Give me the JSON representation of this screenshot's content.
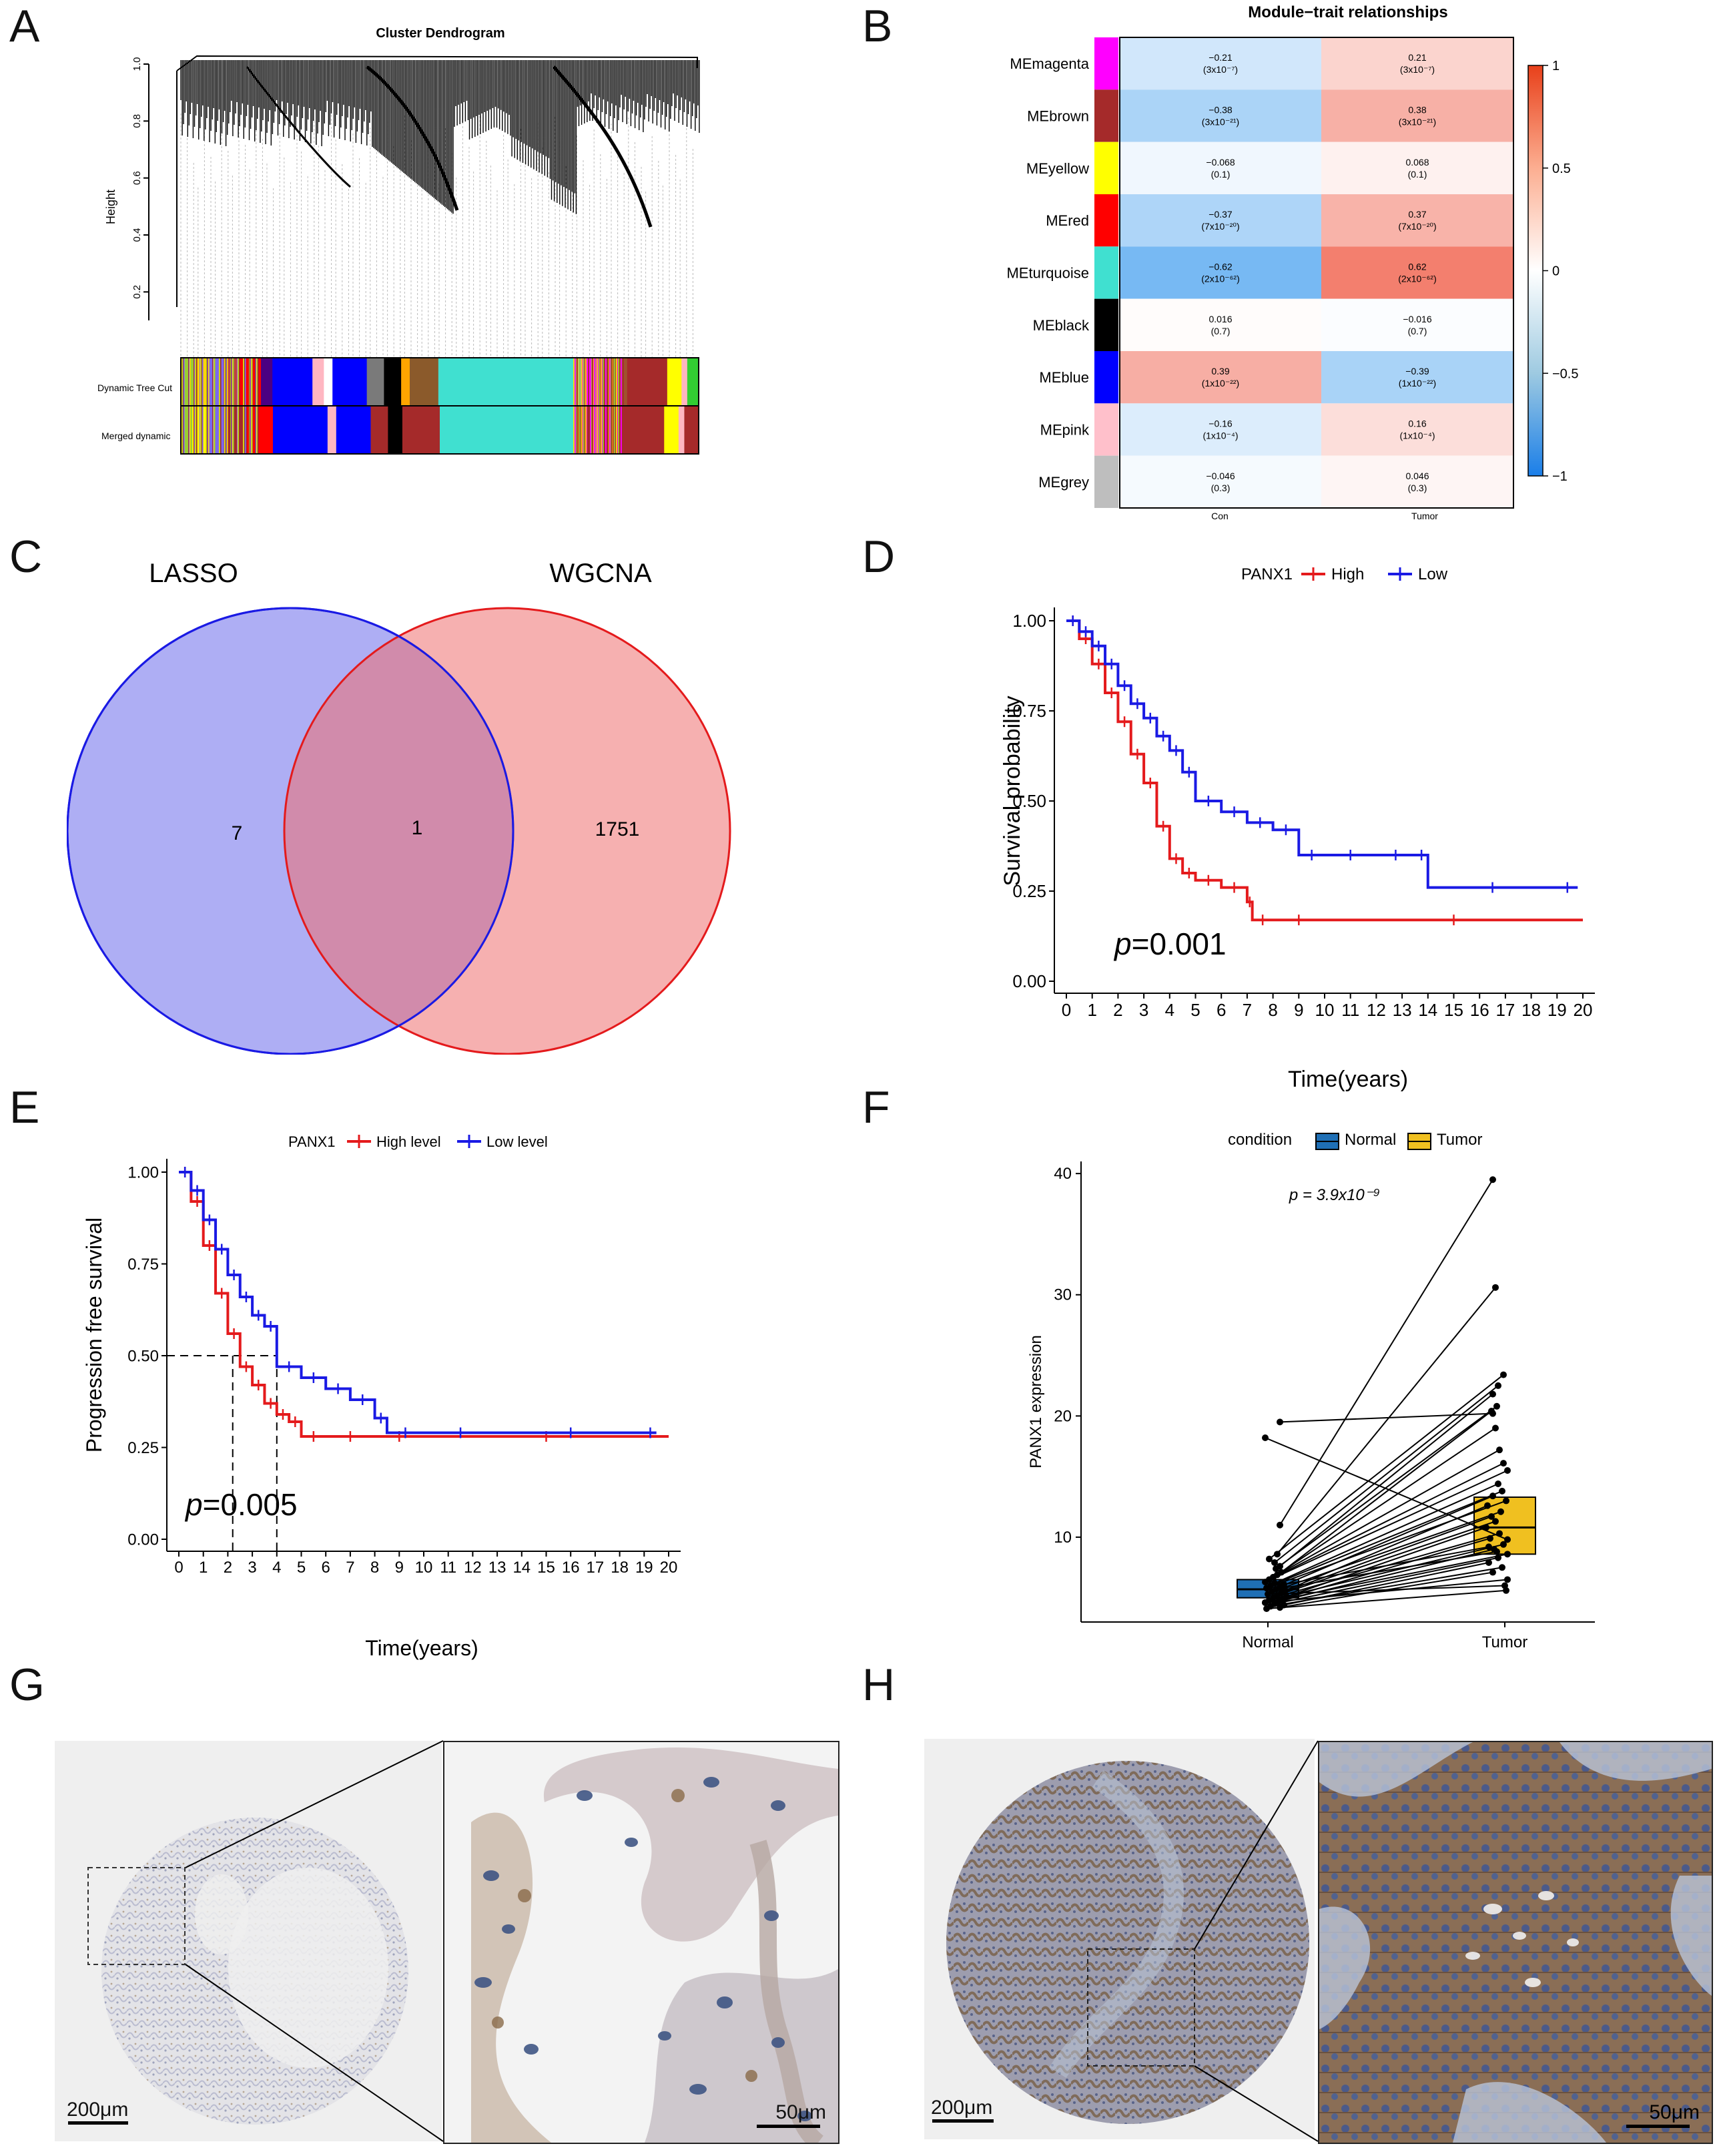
{
  "panels": {
    "a": {
      "letter": "A",
      "title": "Cluster Dendrogram",
      "ylabel": "Height",
      "yticks": [
        "1.0",
        "0.8",
        "0.6",
        "0.4",
        "0.2"
      ],
      "row_labels": [
        "Dynamic Tree Cut",
        "Merged dynamic"
      ],
      "tracks": [
        {
          "width": 0.025,
          "color": "#9acd32"
        },
        {
          "width": 0.02,
          "color": "#ffd700"
        },
        {
          "width": 0.03,
          "color": "#7b68ee"
        },
        {
          "width": 0.025,
          "color": "#c04040"
        },
        {
          "width": 0.04,
          "color": "#ff0000"
        },
        {
          "width": 0.02,
          "color": "#4b0082"
        },
        {
          "width": 0.07,
          "color": "#0000ff"
        },
        {
          "width": 0.02,
          "color": "#ffb6c1"
        },
        {
          "width": 0.015,
          "color": "#ffffff"
        },
        {
          "width": 0.06,
          "color": "#0000ff"
        },
        {
          "width": 0.03,
          "color": "#7a7a7a"
        },
        {
          "width": 0.03,
          "color": "#000000"
        },
        {
          "width": 0.015,
          "color": "#ffa500"
        },
        {
          "width": 0.05,
          "color": "#8b5a2b"
        },
        {
          "width": 0.24,
          "color": "#40e0d0"
        },
        {
          "width": 0.015,
          "color": "#aaaaaa"
        },
        {
          "width": 0.03,
          "color": "#ff00ff"
        },
        {
          "width": 0.045,
          "color": "#a0522d"
        },
        {
          "width": 0.02,
          "color": "#a52a2a"
        },
        {
          "width": 0.05,
          "color": "#a52a2a"
        },
        {
          "width": 0.025,
          "color": "#ffff00"
        },
        {
          "width": 0.01,
          "color": "#ffb6c1"
        },
        {
          "width": 0.02,
          "color": "#32cd32"
        }
      ],
      "merged": [
        {
          "width": 0.02,
          "color": "#9acd32"
        },
        {
          "width": 0.025,
          "color": "#ffff00"
        },
        {
          "width": 0.03,
          "color": "#7b68ee"
        },
        {
          "width": 0.04,
          "color": "#a52a2a"
        },
        {
          "width": 0.045,
          "color": "#ff0000"
        },
        {
          "width": 0.095,
          "color": "#0000ff"
        },
        {
          "width": 0.015,
          "color": "#ffb6c1"
        },
        {
          "width": 0.06,
          "color": "#0000ff"
        },
        {
          "width": 0.03,
          "color": "#a52a2a"
        },
        {
          "width": 0.025,
          "color": "#000000"
        },
        {
          "width": 0.015,
          "color": "#a52a2a"
        },
        {
          "width": 0.05,
          "color": "#a52a2a"
        },
        {
          "width": 0.24,
          "color": "#40e0d0"
        },
        {
          "width": 0.025,
          "color": "#a52a2a"
        },
        {
          "width": 0.02,
          "color": "#ff00ff"
        },
        {
          "width": 0.06,
          "color": "#a52a2a"
        },
        {
          "width": 0.045,
          "color": "#a52a2a"
        },
        {
          "width": 0.025,
          "color": "#ffff00"
        },
        {
          "width": 0.01,
          "color": "#ffb6c1"
        },
        {
          "width": 0.025,
          "color": "#a52a2a"
        }
      ]
    },
    "b": {
      "letter": "B",
      "title": "Module−trait relationships",
      "columns": [
        "Con",
        "Tumor"
      ],
      "legend_ticks": [
        "1",
        "0.5",
        "0",
        "−0.5",
        "−1"
      ],
      "rows": [
        {
          "name": "MEmagenta",
          "color": "#ff00ff",
          "con": "−0.21",
          "con_p": "(3x10⁻⁷)",
          "tum": "0.21",
          "tum_p": "(3x10⁻⁷)",
          "r": -0.21
        },
        {
          "name": "MEbrown",
          "color": "#a52a2a",
          "con": "−0.38",
          "con_p": "(3x10⁻²¹)",
          "tum": "0.38",
          "tum_p": "(3x10⁻²¹)",
          "r": -0.38
        },
        {
          "name": "MEyellow",
          "color": "#ffff00",
          "con": "−0.068",
          "con_p": "(0.1)",
          "tum": "0.068",
          "tum_p": "(0.1)",
          "r": -0.068
        },
        {
          "name": "MEred",
          "color": "#ff0000",
          "con": "−0.37",
          "con_p": "(7x10⁻²⁰)",
          "tum": "0.37",
          "tum_p": "(7x10⁻²⁰)",
          "r": -0.37
        },
        {
          "name": "MEturquoise",
          "color": "#40e0d0",
          "con": "−0.62",
          "con_p": "(2x10⁻⁶²)",
          "tum": "0.62",
          "tum_p": "(2x10⁻⁶²)",
          "r": -0.62
        },
        {
          "name": "MEblack",
          "color": "#000000",
          "con": "0.016",
          "con_p": "(0.7)",
          "tum": "−0.016",
          "tum_p": "(0.7)",
          "r": 0.016
        },
        {
          "name": "MEblue",
          "color": "#0000ff",
          "con": "0.39",
          "con_p": "(1x10⁻²²)",
          "tum": "−0.39",
          "tum_p": "(1x10⁻²²)",
          "r": 0.39
        },
        {
          "name": "MEpink",
          "color": "#ffc0cb",
          "con": "−0.16",
          "con_p": "(1x10⁻⁴)",
          "tum": "0.16",
          "tum_p": "(1x10⁻⁴)",
          "r": -0.16
        },
        {
          "name": "MEgrey",
          "color": "#bebebe",
          "con": "−0.046",
          "con_p": "(0.3)",
          "tum": "0.046",
          "tum_p": "(0.3)",
          "r": -0.046
        }
      ]
    },
    "c": {
      "letter": "C",
      "left_label": "LASSO",
      "right_label": "WGCNA",
      "left_only": "7",
      "overlap": "1",
      "right_only": "1751"
    },
    "d": {
      "letter": "D",
      "legend_title": "PANX1",
      "legend_high": "High",
      "legend_low": "Low",
      "ylabel": "Survival probability",
      "xlabel": "Time(years)",
      "yticks": [
        "1.00",
        "0.75",
        "0.50",
        "0.25",
        "0.00"
      ],
      "xticks": [
        "0",
        "1",
        "2",
        "3",
        "4",
        "5",
        "6",
        "7",
        "8",
        "9",
        "10",
        "11",
        "12",
        "13",
        "14",
        "15",
        "16",
        "17",
        "18",
        "19",
        "20"
      ],
      "p_text": "=0.001",
      "p_italic": "p"
    },
    "e": {
      "letter": "E",
      "legend_title": "PANX1",
      "legend_high": "High level",
      "legend_low": "Low level",
      "ylabel": "Progression free survival",
      "xlabel": "Time(years)",
      "yticks": [
        "1.00",
        "0.75",
        "0.50",
        "0.25",
        "0.00"
      ],
      "xticks": [
        "0",
        "1",
        "2",
        "3",
        "4",
        "5",
        "6",
        "7",
        "8",
        "9",
        "10",
        "11",
        "12",
        "13",
        "14",
        "15",
        "16",
        "17",
        "18",
        "19",
        "20"
      ],
      "p_text": "=0.005",
      "p_italic": "p"
    },
    "f": {
      "letter": "F",
      "legend_title": "condition",
      "legend_normal": "Normal",
      "legend_tumor": "Tumor",
      "ylabel": "PANX1 expression",
      "p_text": "p = 3.9x10⁻⁹",
      "yticks": [
        "40",
        "30",
        "20",
        "10"
      ],
      "xticks": [
        "Normal",
        "Tumor"
      ]
    },
    "g": {
      "letter": "G",
      "scale_left": "200μm",
      "scale_right": "50μm"
    },
    "h": {
      "letter": "H",
      "scale_left": "200μm",
      "scale_right": "50μm"
    }
  },
  "chart_data": [
    {
      "type": "line",
      "panel": "D",
      "title": "",
      "xlabel": "Time(years)",
      "ylabel": "Survival probability",
      "xlim": [
        0,
        20
      ],
      "ylim": [
        0,
        1
      ],
      "series": [
        {
          "name": "High",
          "color": "#e41a1c",
          "x": [
            0,
            0.5,
            1,
            1.5,
            2,
            2.5,
            3,
            3.5,
            4,
            4.5,
            5,
            6,
            7,
            7.2,
            8,
            10,
            20
          ],
          "y": [
            1,
            0.95,
            0.88,
            0.8,
            0.72,
            0.63,
            0.55,
            0.43,
            0.34,
            0.3,
            0.28,
            0.26,
            0.22,
            0.17,
            0.17,
            0.17,
            0.17
          ]
        },
        {
          "name": "Low",
          "color": "#1a1ae4",
          "x": [
            0,
            0.5,
            1,
            1.5,
            2,
            2.5,
            3,
            3.5,
            4,
            4.5,
            5,
            6,
            7,
            8,
            9,
            10,
            12,
            13.5,
            14,
            19,
            19.8
          ],
          "y": [
            1,
            0.97,
            0.93,
            0.88,
            0.82,
            0.77,
            0.73,
            0.68,
            0.64,
            0.58,
            0.5,
            0.47,
            0.44,
            0.42,
            0.35,
            0.35,
            0.35,
            0.35,
            0.26,
            0.26,
            0.26
          ]
        }
      ]
    },
    {
      "type": "line",
      "panel": "E",
      "title": "",
      "xlabel": "Time(years)",
      "ylabel": "Progression free survival",
      "xlim": [
        0,
        20
      ],
      "ylim": [
        0,
        1
      ],
      "series": [
        {
          "name": "High level",
          "color": "#e41a1c",
          "x": [
            0,
            0.5,
            1,
            1.5,
            2,
            2.5,
            3,
            3.5,
            4,
            4.5,
            5,
            6,
            8,
            10,
            20
          ],
          "y": [
            1,
            0.92,
            0.8,
            0.67,
            0.56,
            0.47,
            0.42,
            0.37,
            0.34,
            0.32,
            0.28,
            0.28,
            0.28,
            0.28,
            0.28
          ]
        },
        {
          "name": "Low level",
          "color": "#1a1ae4",
          "x": [
            0,
            0.5,
            1,
            1.5,
            2,
            2.5,
            3,
            3.5,
            4,
            5,
            6,
            7,
            8,
            8.5,
            10,
            13,
            19,
            19.5
          ],
          "y": [
            1,
            0.95,
            0.87,
            0.79,
            0.72,
            0.66,
            0.61,
            0.58,
            0.47,
            0.44,
            0.41,
            0.38,
            0.33,
            0.29,
            0.29,
            0.29,
            0.29,
            0.29
          ]
        }
      ],
      "median_lines": [
        2.2,
        4.0
      ]
    },
    {
      "type": "box",
      "panel": "F",
      "ylabel": "PANX1 expression",
      "categories": [
        "Normal",
        "Tumor"
      ],
      "ylim": [
        3,
        41
      ],
      "boxes": [
        {
          "name": "Normal",
          "color": "#1f6fb5",
          "q1": 5.0,
          "median": 5.7,
          "q3": 6.5
        },
        {
          "name": "Tumor",
          "color": "#f0c020",
          "q1": 8.6,
          "median": 10.8,
          "q3": 13.3
        }
      ],
      "pairs": [
        [
          19.5,
          20.2
        ],
        [
          18.2,
          9.8
        ],
        [
          11,
          39.5
        ],
        [
          8.6,
          30.6
        ],
        [
          8.2,
          23.4
        ],
        [
          7.9,
          22.5
        ],
        [
          7.6,
          21.8
        ],
        [
          7.4,
          20.8
        ],
        [
          7.1,
          20.4
        ],
        [
          6.9,
          19
        ],
        [
          6.7,
          17.2
        ],
        [
          6.5,
          16.1
        ],
        [
          6.3,
          15.5
        ],
        [
          6.2,
          14.4
        ],
        [
          6.0,
          13.8
        ],
        [
          5.9,
          13.4
        ],
        [
          5.8,
          13
        ],
        [
          5.6,
          12.6
        ],
        [
          5.5,
          12.1
        ],
        [
          5.4,
          11.7
        ],
        [
          5.2,
          11.3
        ],
        [
          5.1,
          10.8
        ],
        [
          5.0,
          10.3
        ],
        [
          4.9,
          9.9
        ],
        [
          4.8,
          9.4
        ],
        [
          4.7,
          9.0
        ],
        [
          4.6,
          8.6
        ],
        [
          4.5,
          8.3
        ],
        [
          4.4,
          7.9
        ],
        [
          4.3,
          7.5
        ],
        [
          4.2,
          7.1
        ],
        [
          4.6,
          6.5
        ],
        [
          5.3,
          6.0
        ],
        [
          4.1,
          5.6
        ],
        [
          6.1,
          9.2
        ],
        [
          5.7,
          8.8
        ]
      ]
    }
  ]
}
